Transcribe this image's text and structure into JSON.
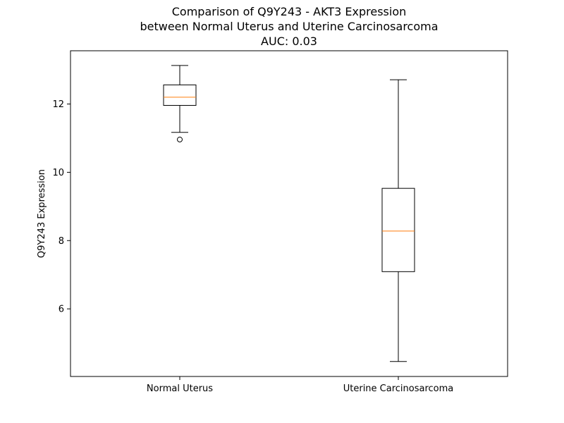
{
  "chart_data": {
    "type": "box",
    "title": [
      "Comparison of Q9Y243 - AKT3 Expression",
      "between Normal Uterus and Uterine Carcinosarcoma",
      "AUC: 0.03"
    ],
    "xlabel": "",
    "ylabel": "Q9Y243 Expression",
    "categories": [
      "Normal Uterus",
      "Uterine Carcinosarcoma"
    ],
    "boxes": [
      {
        "category": "Normal Uterus",
        "whisker_low": 11.17,
        "q1": 11.96,
        "median": 12.2,
        "q3": 12.56,
        "whisker_high": 13.13,
        "outliers": [
          10.96
        ]
      },
      {
        "category": "Uterine Carcinosarcoma",
        "whisker_low": 4.46,
        "q1": 7.09,
        "median": 8.28,
        "q3": 9.53,
        "whisker_high": 12.71,
        "outliers": []
      }
    ],
    "ylim": [
      4.02,
      13.56
    ],
    "yticks": [
      6,
      8,
      10,
      12
    ],
    "grid": false,
    "colors": {
      "box": "#000000",
      "median": "#ff7f0e",
      "whisker": "#000000",
      "outlier": "#000000"
    }
  }
}
